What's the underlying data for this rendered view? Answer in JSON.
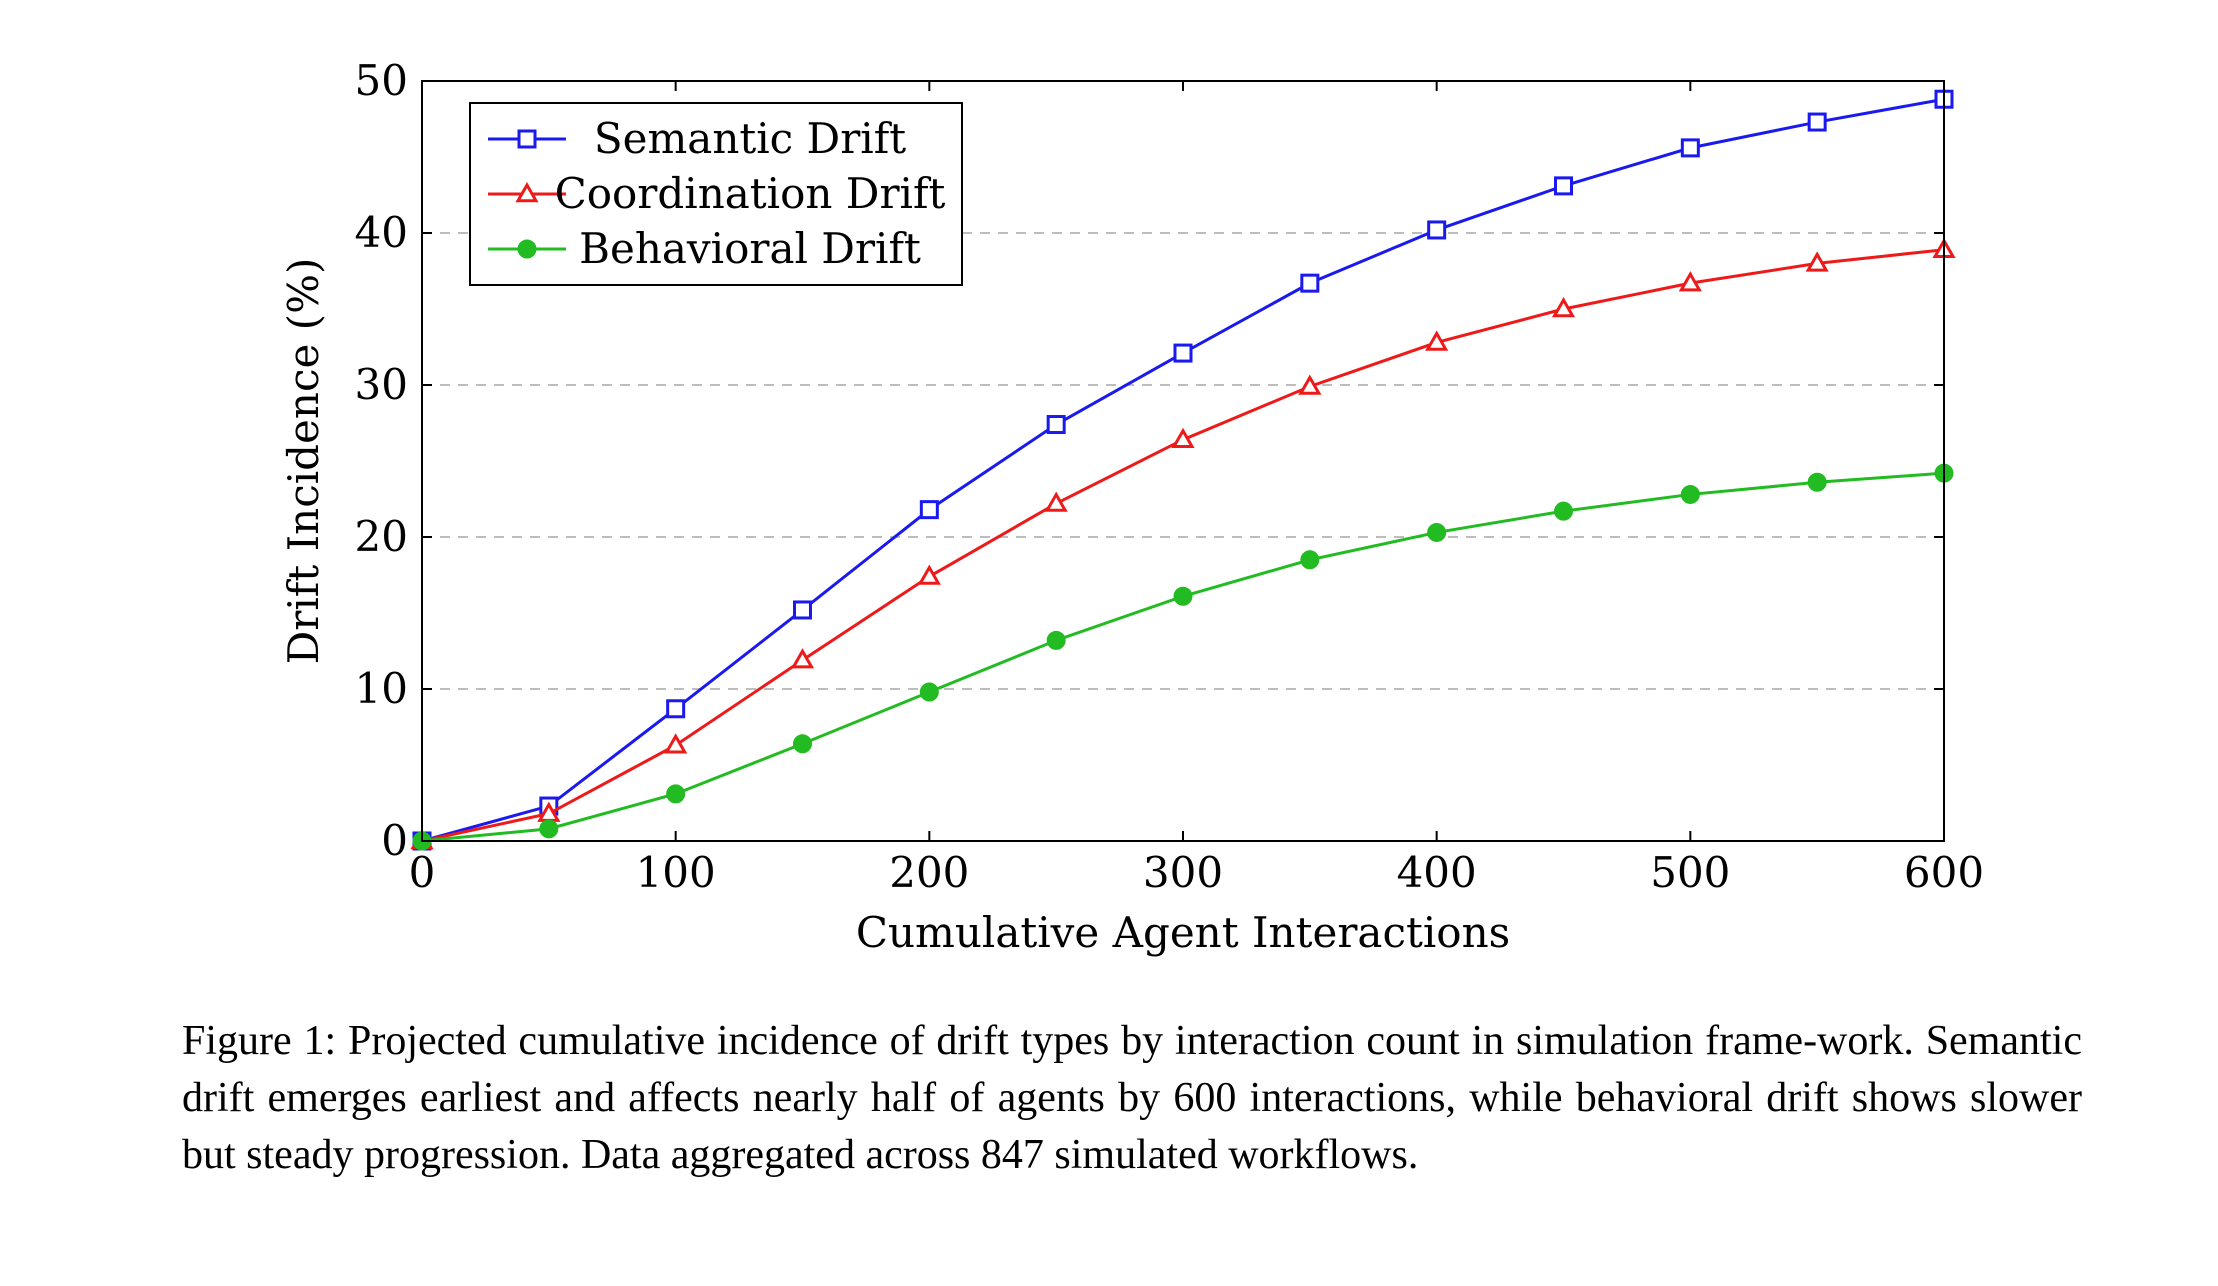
{
  "chart_data": {
    "type": "line",
    "title": "",
    "xlabel": "Cumulative Agent Interactions",
    "ylabel": "Drift Incidence (%)",
    "xlim": [
      0,
      600
    ],
    "ylim": [
      0,
      50
    ],
    "xticks": [
      0,
      100,
      200,
      300,
      400,
      500,
      600
    ],
    "yticks": [
      0,
      10,
      20,
      30,
      40,
      50
    ],
    "grid": "horizontal dashed",
    "legend_position": "top-left",
    "x": [
      0,
      50,
      100,
      150,
      200,
      250,
      300,
      350,
      400,
      450,
      500,
      550,
      600
    ],
    "series": [
      {
        "name": "Semantic Drift",
        "color": "#1a1aee",
        "marker": "open-square",
        "values": [
          0,
          2.3,
          8.7,
          15.2,
          21.8,
          27.4,
          32.1,
          36.7,
          40.2,
          43.1,
          45.6,
          47.3,
          48.8
        ]
      },
      {
        "name": "Coordination Drift",
        "color": "#ee1a1a",
        "marker": "open-triangle",
        "values": [
          0,
          1.8,
          6.3,
          11.9,
          17.4,
          22.2,
          26.4,
          29.9,
          32.8,
          35.0,
          36.7,
          38.0,
          38.9
        ]
      },
      {
        "name": "Behavioral Drift",
        "color": "#22bb22",
        "marker": "filled-circle",
        "values": [
          0,
          0.8,
          3.1,
          6.4,
          9.8,
          13.2,
          16.1,
          18.5,
          20.3,
          21.7,
          22.8,
          23.6,
          24.2
        ]
      }
    ]
  },
  "caption": {
    "text": "Figure 1: Projected cumulative incidence of drift types by interaction count in simulation frame-work. Semantic drift emerges earliest and affects nearly half of agents by 600 interactions, while behavioral drift shows slower but steady progression.  Data aggregated across 847 simulated workflows."
  }
}
